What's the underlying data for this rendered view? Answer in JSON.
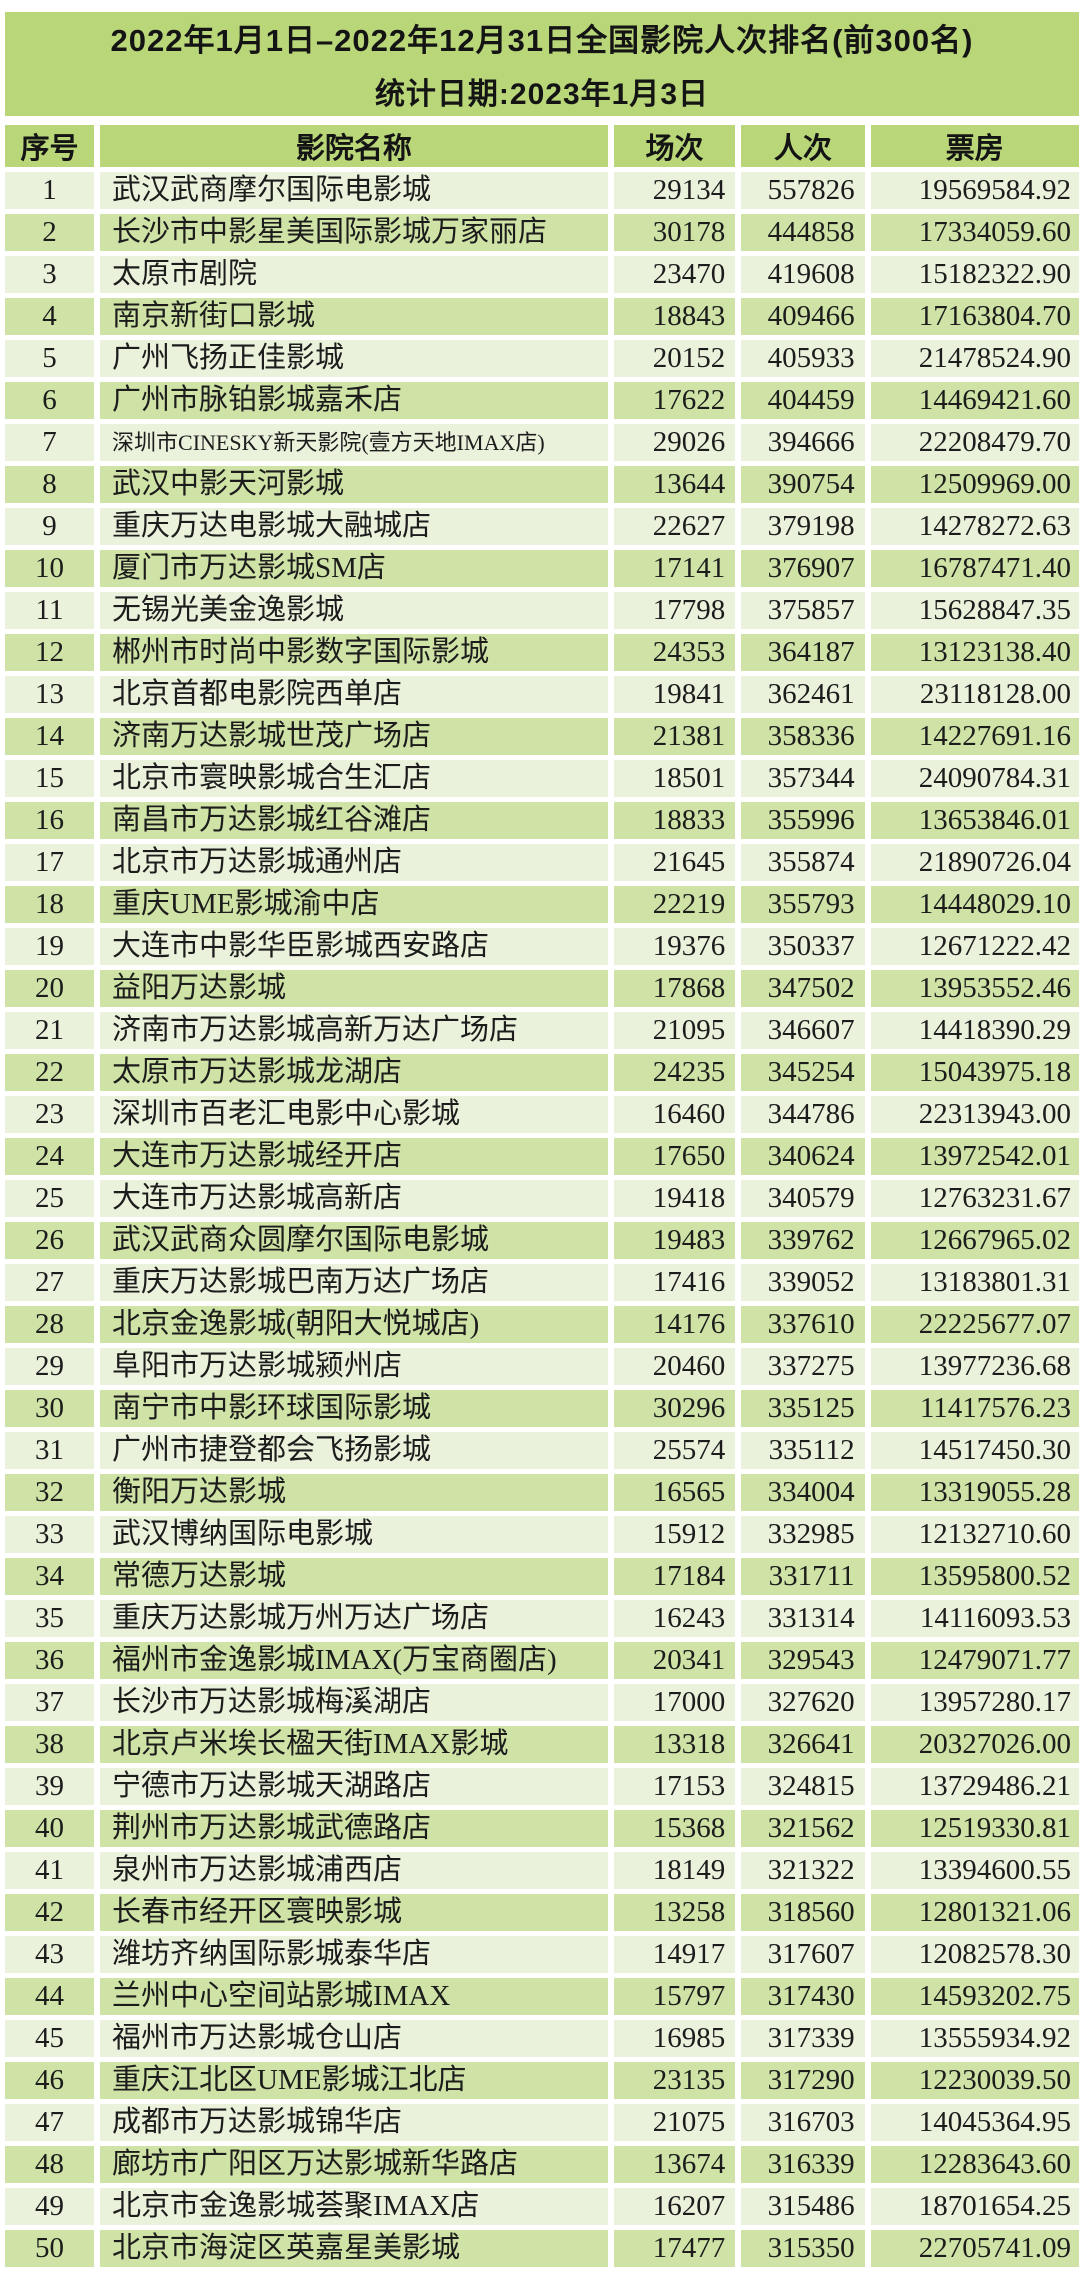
{
  "header": {
    "title_line1": "2022年1月1日–2022年12月31日全国影院人次排名(前300名)",
    "title_line2": "统计日期:2023年1月3日"
  },
  "colors": {
    "band_green": "#b9d679",
    "row_light": "#eaf2dc",
    "row_mid": "#cfe3a6",
    "text_dark": "#1c1c1c"
  },
  "table": {
    "columns": [
      "序号",
      "影院名称",
      "场次",
      "人次",
      "票房"
    ],
    "rows": [
      {
        "rank": 1,
        "name": "武汉武商摩尔国际电影城",
        "sessions": "29134",
        "admissions": "557826",
        "box_office": "19569584.92"
      },
      {
        "rank": 2,
        "name": "长沙市中影星美国际影城万家丽店",
        "sessions": "30178",
        "admissions": "444858",
        "box_office": "17334059.60"
      },
      {
        "rank": 3,
        "name": "太原市剧院",
        "sessions": "23470",
        "admissions": "419608",
        "box_office": "15182322.90"
      },
      {
        "rank": 4,
        "name": "南京新街口影城",
        "sessions": "18843",
        "admissions": "409466",
        "box_office": "17163804.70"
      },
      {
        "rank": 5,
        "name": "广州飞扬正佳影城",
        "sessions": "20152",
        "admissions": "405933",
        "box_office": "21478524.90"
      },
      {
        "rank": 6,
        "name": "广州市脉铂影城嘉禾店",
        "sessions": "17622",
        "admissions": "404459",
        "box_office": "14469421.60"
      },
      {
        "rank": 7,
        "name": "深圳市CINESKY新天影院(壹方天地IMAX店)",
        "sessions": "29026",
        "admissions": "394666",
        "box_office": "22208479.70"
      },
      {
        "rank": 8,
        "name": "武汉中影天河影城",
        "sessions": "13644",
        "admissions": "390754",
        "box_office": "12509969.00"
      },
      {
        "rank": 9,
        "name": "重庆万达电影城大融城店",
        "sessions": "22627",
        "admissions": "379198",
        "box_office": "14278272.63"
      },
      {
        "rank": 10,
        "name": "厦门市万达影城SM店",
        "sessions": "17141",
        "admissions": "376907",
        "box_office": "16787471.40"
      },
      {
        "rank": 11,
        "name": "无锡光美金逸影城",
        "sessions": "17798",
        "admissions": "375857",
        "box_office": "15628847.35"
      },
      {
        "rank": 12,
        "name": "郴州市时尚中影数字国际影城",
        "sessions": "24353",
        "admissions": "364187",
        "box_office": "13123138.40"
      },
      {
        "rank": 13,
        "name": "北京首都电影院西单店",
        "sessions": "19841",
        "admissions": "362461",
        "box_office": "23118128.00"
      },
      {
        "rank": 14,
        "name": "济南万达影城世茂广场店",
        "sessions": "21381",
        "admissions": "358336",
        "box_office": "14227691.16"
      },
      {
        "rank": 15,
        "name": "北京市寰映影城合生汇店",
        "sessions": "18501",
        "admissions": "357344",
        "box_office": "24090784.31"
      },
      {
        "rank": 16,
        "name": "南昌市万达影城红谷滩店",
        "sessions": "18833",
        "admissions": "355996",
        "box_office": "13653846.01"
      },
      {
        "rank": 17,
        "name": "北京市万达影城通州店",
        "sessions": "21645",
        "admissions": "355874",
        "box_office": "21890726.04"
      },
      {
        "rank": 18,
        "name": "重庆UME影城渝中店",
        "sessions": "22219",
        "admissions": "355793",
        "box_office": "14448029.10"
      },
      {
        "rank": 19,
        "name": "大连市中影华臣影城西安路店",
        "sessions": "19376",
        "admissions": "350337",
        "box_office": "12671222.42"
      },
      {
        "rank": 20,
        "name": "益阳万达影城",
        "sessions": "17868",
        "admissions": "347502",
        "box_office": "13953552.46"
      },
      {
        "rank": 21,
        "name": "济南市万达影城高新万达广场店",
        "sessions": "21095",
        "admissions": "346607",
        "box_office": "14418390.29"
      },
      {
        "rank": 22,
        "name": "太原市万达影城龙湖店",
        "sessions": "24235",
        "admissions": "345254",
        "box_office": "15043975.18"
      },
      {
        "rank": 23,
        "name": "深圳市百老汇电影中心影城",
        "sessions": "16460",
        "admissions": "344786",
        "box_office": "22313943.00"
      },
      {
        "rank": 24,
        "name": "大连市万达影城经开店",
        "sessions": "17650",
        "admissions": "340624",
        "box_office": "13972542.01"
      },
      {
        "rank": 25,
        "name": "大连市万达影城高新店",
        "sessions": "19418",
        "admissions": "340579",
        "box_office": "12763231.67"
      },
      {
        "rank": 26,
        "name": "武汉武商众圆摩尔国际电影城",
        "sessions": "19483",
        "admissions": "339762",
        "box_office": "12667965.02"
      },
      {
        "rank": 27,
        "name": "重庆万达影城巴南万达广场店",
        "sessions": "17416",
        "admissions": "339052",
        "box_office": "13183801.31"
      },
      {
        "rank": 28,
        "name": "北京金逸影城(朝阳大悦城店)",
        "sessions": "14176",
        "admissions": "337610",
        "box_office": "22225677.07"
      },
      {
        "rank": 29,
        "name": "阜阳市万达影城颍州店",
        "sessions": "20460",
        "admissions": "337275",
        "box_office": "13977236.68"
      },
      {
        "rank": 30,
        "name": "南宁市中影环球国际影城",
        "sessions": "30296",
        "admissions": "335125",
        "box_office": "11417576.23"
      },
      {
        "rank": 31,
        "name": "广州市捷登都会飞扬影城",
        "sessions": "25574",
        "admissions": "335112",
        "box_office": "14517450.30"
      },
      {
        "rank": 32,
        "name": "衡阳万达影城",
        "sessions": "16565",
        "admissions": "334004",
        "box_office": "13319055.28"
      },
      {
        "rank": 33,
        "name": "武汉博纳国际电影城",
        "sessions": "15912",
        "admissions": "332985",
        "box_office": "12132710.60"
      },
      {
        "rank": 34,
        "name": "常德万达影城",
        "sessions": "17184",
        "admissions": "331711",
        "box_office": "13595800.52"
      },
      {
        "rank": 35,
        "name": "重庆万达影城万州万达广场店",
        "sessions": "16243",
        "admissions": "331314",
        "box_office": "14116093.53"
      },
      {
        "rank": 36,
        "name": "福州市金逸影城IMAX(万宝商圈店)",
        "sessions": "20341",
        "admissions": "329543",
        "box_office": "12479071.77"
      },
      {
        "rank": 37,
        "name": "长沙市万达影城梅溪湖店",
        "sessions": "17000",
        "admissions": "327620",
        "box_office": "13957280.17"
      },
      {
        "rank": 38,
        "name": "北京卢米埃长楹天街IMAX影城",
        "sessions": "13318",
        "admissions": "326641",
        "box_office": "20327026.00"
      },
      {
        "rank": 39,
        "name": "宁德市万达影城天湖路店",
        "sessions": "17153",
        "admissions": "324815",
        "box_office": "13729486.21"
      },
      {
        "rank": 40,
        "name": "荆州市万达影城武德路店",
        "sessions": "15368",
        "admissions": "321562",
        "box_office": "12519330.81"
      },
      {
        "rank": 41,
        "name": "泉州市万达影城浦西店",
        "sessions": "18149",
        "admissions": "321322",
        "box_office": "13394600.55"
      },
      {
        "rank": 42,
        "name": "长春市经开区寰映影城",
        "sessions": "13258",
        "admissions": "318560",
        "box_office": "12801321.06"
      },
      {
        "rank": 43,
        "name": "潍坊齐纳国际影城泰华店",
        "sessions": "14917",
        "admissions": "317607",
        "box_office": "12082578.30"
      },
      {
        "rank": 44,
        "name": "兰州中心空间站影城IMAX",
        "sessions": "15797",
        "admissions": "317430",
        "box_office": "14593202.75"
      },
      {
        "rank": 45,
        "name": "福州市万达影城仓山店",
        "sessions": "16985",
        "admissions": "317339",
        "box_office": "13555934.92"
      },
      {
        "rank": 46,
        "name": "重庆江北区UME影城江北店",
        "sessions": "23135",
        "admissions": "317290",
        "box_office": "12230039.50"
      },
      {
        "rank": 47,
        "name": "成都市万达影城锦华店",
        "sessions": "21075",
        "admissions": "316703",
        "box_office": "14045364.95"
      },
      {
        "rank": 48,
        "name": "廊坊市广阳区万达影城新华路店",
        "sessions": "13674",
        "admissions": "316339",
        "box_office": "12283643.60"
      },
      {
        "rank": 49,
        "name": "北京市金逸影城荟聚IMAX店",
        "sessions": "16207",
        "admissions": "315486",
        "box_office": "18701654.25"
      },
      {
        "rank": 50,
        "name": "北京市海淀区英嘉星美影城",
        "sessions": "17477",
        "admissions": "315350",
        "box_office": "22705741.09"
      }
    ]
  }
}
